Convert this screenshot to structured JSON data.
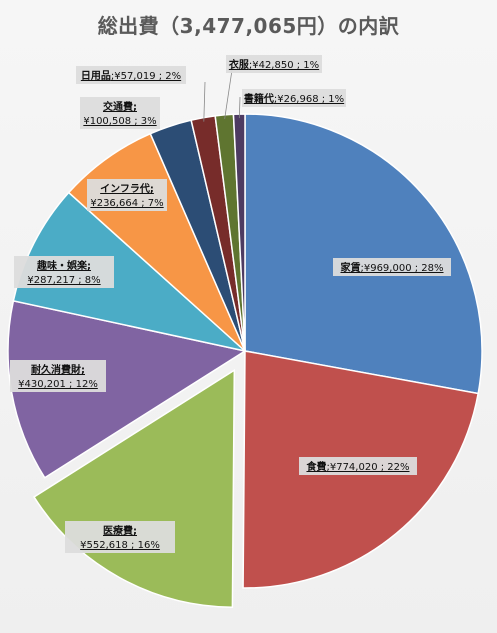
{
  "chart_data": {
    "type": "pie",
    "title": "総出費（3,477,065円）の内訳",
    "slices": [
      {
        "name": "家賃",
        "value": 969000,
        "label": "¥969,000 ; 28%",
        "color": "#4f81bd"
      },
      {
        "name": "食費",
        "value": 774020,
        "label": "¥774,020 ; 22%",
        "color": "#c0504d"
      },
      {
        "name": "医療費",
        "value": 552618,
        "label": "¥552,618 ; 16%",
        "color": "#9bbb59",
        "exploded": true
      },
      {
        "name": "耐久消費財",
        "value": 430201,
        "label": "¥430,201 ; 12%",
        "color": "#8064a2"
      },
      {
        "name": "趣味・娯楽",
        "value": 287217,
        "label": "¥287,217 ; 8%",
        "color": "#4bacc6"
      },
      {
        "name": "インフラ代",
        "value": 236664,
        "label": "¥236,664 ; 7%",
        "color": "#f79646"
      },
      {
        "name": "交通費",
        "value": 100508,
        "label": "¥100,508 ; 3%",
        "color": "#2c4d75"
      },
      {
        "name": "日用品",
        "value": 57019,
        "label": "¥57,019 ; 2%",
        "color": "#772c2a"
      },
      {
        "name": "衣服",
        "value": 42850,
        "label": "¥42,850 ; 1%",
        "color": "#5f7530"
      },
      {
        "name": "書籍代",
        "value": 26968,
        "label": "¥26,968 ; 1%",
        "color": "#4d3b62"
      }
    ]
  }
}
